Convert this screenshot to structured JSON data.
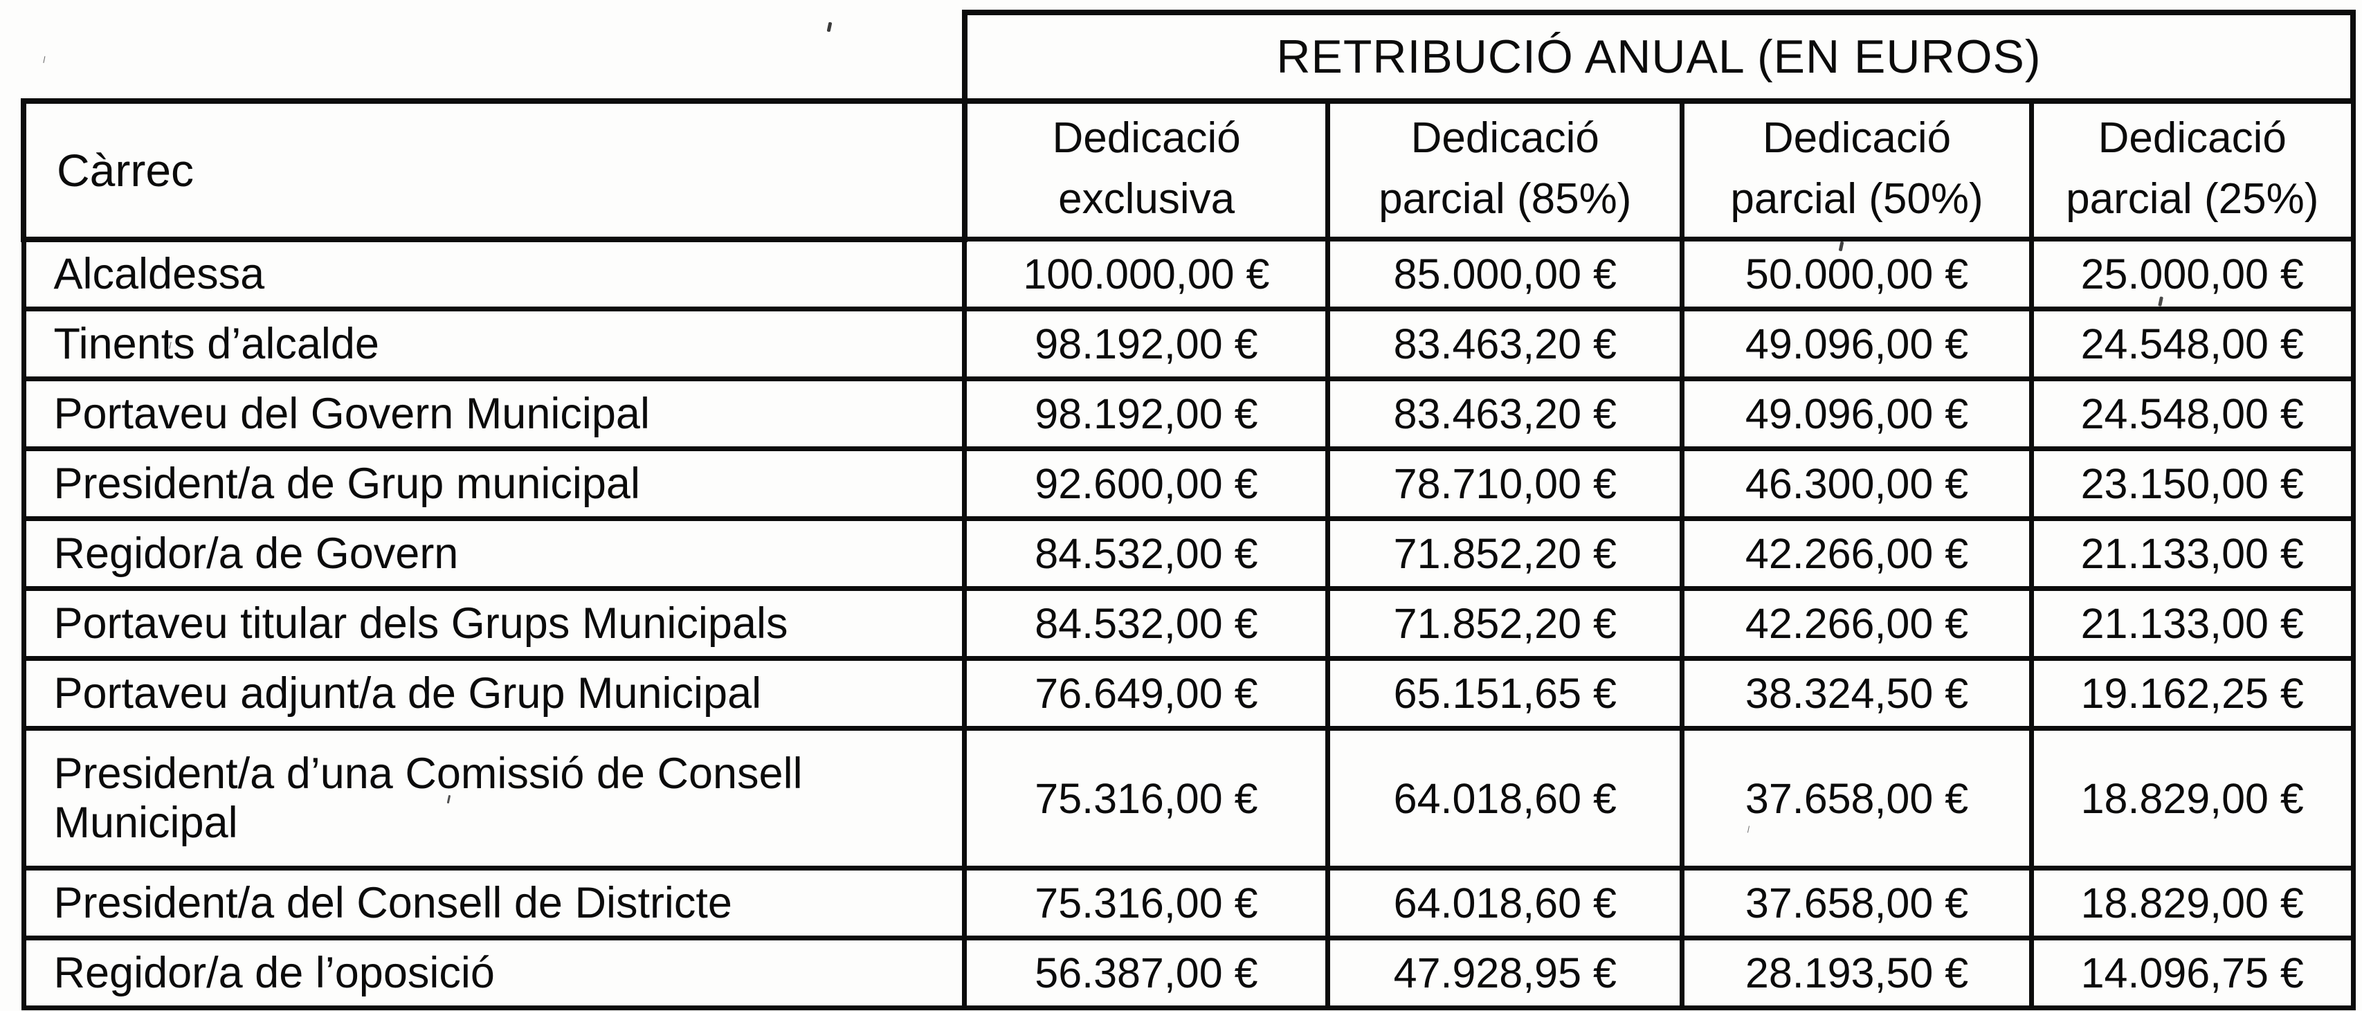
{
  "table": {
    "top_header": "RETRIBUCIÓ ANUAL (EN EUROS)",
    "col1_header": "Càrrec",
    "column_headers": [
      {
        "line1": "Dedicació",
        "line2": "exclusiva"
      },
      {
        "line1": "Dedicació",
        "line2": "parcial (85%)"
      },
      {
        "line1": "Dedicació",
        "line2": "parcial (50%)"
      },
      {
        "line1": "Dedicació",
        "line2": "parcial (25%)"
      }
    ],
    "rows": [
      {
        "carrec": "Alcaldessa",
        "values": [
          "100.000,00 €",
          "85.000,00 €",
          "50.000,00 €",
          "25.000,00 €"
        ]
      },
      {
        "carrec": "Tinents d’alcalde",
        "values": [
          "98.192,00 €",
          "83.463,20 €",
          "49.096,00 €",
          "24.548,00 €"
        ]
      },
      {
        "carrec": "Portaveu del Govern Municipal",
        "values": [
          "98.192,00 €",
          "83.463,20 €",
          "49.096,00 €",
          "24.548,00 €"
        ]
      },
      {
        "carrec": "President/a de Grup municipal",
        "values": [
          "92.600,00 €",
          "78.710,00 €",
          "46.300,00 €",
          "23.150,00 €"
        ]
      },
      {
        "carrec": "Regidor/a de Govern",
        "values": [
          "84.532,00 €",
          "71.852,20 €",
          "42.266,00 €",
          "21.133,00 €"
        ]
      },
      {
        "carrec": "Portaveu titular dels Grups Municipals",
        "values": [
          "84.532,00 €",
          "71.852,20 €",
          "42.266,00 €",
          "21.133,00 €"
        ]
      },
      {
        "carrec": "Portaveu adjunt/a de Grup Municipal",
        "values": [
          "76.649,00 €",
          "65.151,65 €",
          "38.324,50 €",
          "19.162,25 €"
        ]
      },
      {
        "carrec": "President/a d’una Comissió de Consell Municipal",
        "values": [
          "75.316,00 €",
          "64.018,60 €",
          "37.658,00 €",
          "18.829,00 €"
        ]
      },
      {
        "carrec": "President/a del Consell de Districte",
        "values": [
          "75.316,00 €",
          "64.018,60 €",
          "37.658,00 €",
          "18.829,00 €"
        ]
      },
      {
        "carrec": "Regidor/a de l’oposició",
        "values": [
          "56.387,00 €",
          "47.928,95 €",
          "28.193,50 €",
          "14.096,75 €"
        ]
      }
    ],
    "colors": {
      "ink": "#0c0c0c",
      "paper": "#fdfdfc"
    }
  }
}
